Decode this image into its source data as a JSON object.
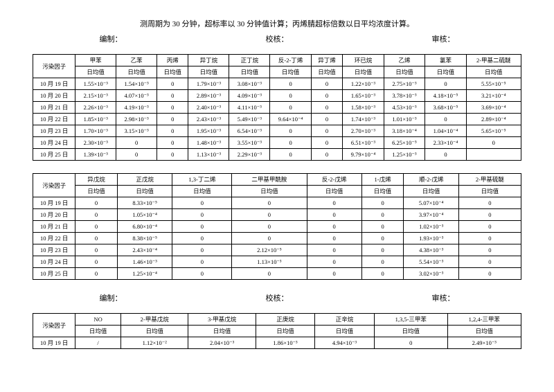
{
  "noteLine": "测周期为 30 分钟，超标率以 30 分钟值计算；丙烯腈超标倍数以日平均浓度计算。",
  "sig": {
    "a": "编制：",
    "b": "校核：",
    "c": "审核："
  },
  "subhdr": "日均值",
  "t1": {
    "rowLabel": "污染因子",
    "cols": [
      "甲苯",
      "乙苯",
      "丙烯",
      "异丁烷",
      "正丁烷",
      "反-2-丁烯",
      "异丁烯",
      "环已烷",
      "乙烯",
      "氯苯",
      "2-甲基二硫醚"
    ],
    "rows": [
      {
        "d": "10 月 19 日",
        "v": [
          "1.55×10⁻³",
          "1.54×10⁻³",
          "0",
          "1.79×10⁻³",
          "3.08×10⁻³",
          "0",
          "0",
          "1.22×10⁻³",
          "2.75×10⁻³",
          "0",
          "5.55×10⁻⁵"
        ]
      },
      {
        "d": "10 月 20 日",
        "v": [
          "2.15×10⁻³",
          "4.07×10⁻³",
          "0",
          "2.89×10⁻³",
          "4.09×10⁻³",
          "0",
          "0",
          "1.65×10⁻³",
          "3.78×10⁻³",
          "4.18×10⁻⁵",
          "3.21×10⁻⁴"
        ]
      },
      {
        "d": "10 月 21 日",
        "v": [
          "2.26×10⁻³",
          "4.19×10⁻³",
          "0",
          "2.40×10⁻³",
          "4.11×10⁻³",
          "0",
          "0",
          "1.58×10⁻³",
          "4.53×10⁻³",
          "3.68×10⁻⁵",
          "3.69×10⁻⁴"
        ]
      },
      {
        "d": "10 月 22 日",
        "v": [
          "1.85×10⁻³",
          "2.98×10⁻³",
          "0",
          "2.43×10⁻³",
          "5.49×10⁻³",
          "9.64×10⁻⁴",
          "0",
          "1.74×10⁻³",
          "1.01×10⁻³",
          "0",
          "2.89×10⁻⁴"
        ]
      },
      {
        "d": "10 月 23 日",
        "v": [
          "1.70×10⁻³",
          "3.15×10⁻³",
          "0",
          "1.95×10⁻³",
          "6.54×10⁻³",
          "0",
          "0",
          "2.70×10⁻³",
          "3.18×10⁻⁴",
          "1.04×10⁻⁴",
          "5.65×10⁻⁵"
        ]
      },
      {
        "d": "10 月 24 日",
        "v": [
          "2.30×10⁻³",
          "0",
          "0",
          "1.48×10⁻³",
          "3.55×10⁻³",
          "0",
          "0",
          "6.51×10⁻³",
          "6.25×10⁻⁵",
          "2.33×10⁻⁴",
          "0"
        ]
      },
      {
        "d": "10 月 25 日",
        "v": [
          "1.39×10⁻³",
          "0",
          "0",
          "1.13×10⁻³",
          "2.29×10⁻³",
          "0",
          "0",
          "9.79×10⁻⁴",
          "1.25×10⁻³",
          "0",
          ""
        ]
      }
    ]
  },
  "t2": {
    "rowLabel": "污染因子",
    "cols": [
      "异戊烷",
      "正戊烷",
      "1,3-丁二烯",
      "二甲基甲酰胺",
      "反-2-戊烯",
      "1-戊烯",
      "顺-2-戊烯",
      "2-甲基硫醚"
    ],
    "rows": [
      {
        "d": "10 月 19 日",
        "v": [
          "0",
          "8.33×10⁻⁵",
          "0",
          "0",
          "0",
          "0",
          "5.07×10⁻⁴",
          "0"
        ]
      },
      {
        "d": "10 月 20 日",
        "v": [
          "0",
          "1.05×10⁻⁴",
          "0",
          "0",
          "0",
          "0",
          "3.97×10⁻⁴",
          "0"
        ]
      },
      {
        "d": "10 月 21 日",
        "v": [
          "0",
          "6.80×10⁻⁴",
          "0",
          "0",
          "0",
          "0",
          "1.02×10⁻³",
          "0"
        ]
      },
      {
        "d": "10 月 22 日",
        "v": [
          "0",
          "8.38×10⁻⁵",
          "0",
          "0",
          "0",
          "0",
          "1.93×10⁻³",
          "0"
        ]
      },
      {
        "d": "10 月 23 日",
        "v": [
          "0",
          "2.43×10⁻⁴",
          "0",
          "2.12×10⁻⁵",
          "0",
          "0",
          "4.38×10⁻³",
          "0"
        ]
      },
      {
        "d": "10 月 24 日",
        "v": [
          "0",
          "1.46×10⁻³",
          "0",
          "1.13×10⁻³",
          "0",
          "0",
          "5.54×10⁻³",
          "0"
        ]
      },
      {
        "d": "10 月 25 日",
        "v": [
          "0",
          "1.25×10⁻⁴",
          "0",
          "0",
          "0",
          "0",
          "3.02×10⁻³",
          "0"
        ]
      }
    ]
  },
  "t3": {
    "rowLabel": "污染因子",
    "cols": [
      "NO",
      "2-甲基戊烷",
      "3-甲基戊烷",
      "正庚烷",
      "正辛烷",
      "1,3,5-三甲苯",
      "1,2,4-三甲苯"
    ],
    "rows": [
      {
        "d": "10 月 19 日",
        "v": [
          "/",
          "1.12×10⁻²",
          "2.04×10⁻³",
          "1.86×10⁻³",
          "4.94×10⁻³",
          "0",
          "2.49×10⁻³"
        ]
      }
    ]
  }
}
